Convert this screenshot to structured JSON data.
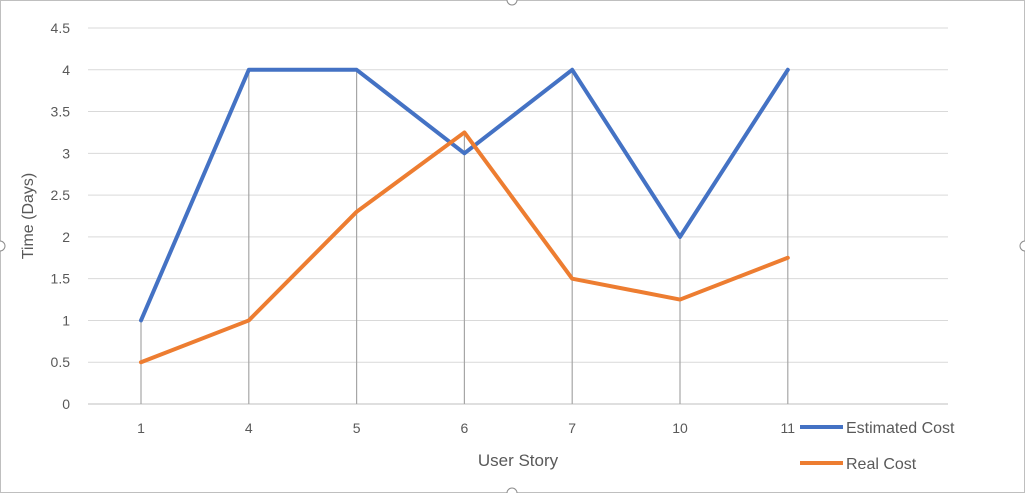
{
  "chart_data": {
    "type": "line",
    "title": "",
    "xlabel": "User Story",
    "ylabel": "Time (Days)",
    "categories": [
      "1",
      "4",
      "5",
      "6",
      "7",
      "10",
      "11"
    ],
    "ylim": [
      0,
      4.5
    ],
    "yticks": [
      "0",
      "0.5",
      "1",
      "1.5",
      "2",
      "2.5",
      "3",
      "3.5",
      "4",
      "4.5"
    ],
    "grid": true,
    "legend_position": "bottom-right",
    "series": [
      {
        "name": "Estimated Cost",
        "color": "#4472C4",
        "values": [
          1,
          4,
          4,
          3,
          4,
          2,
          4
        ]
      },
      {
        "name": "Real Cost",
        "color": "#ED7D31",
        "values": [
          0.5,
          1,
          2.3,
          3.25,
          1.5,
          1.25,
          1.75
        ]
      }
    ]
  }
}
